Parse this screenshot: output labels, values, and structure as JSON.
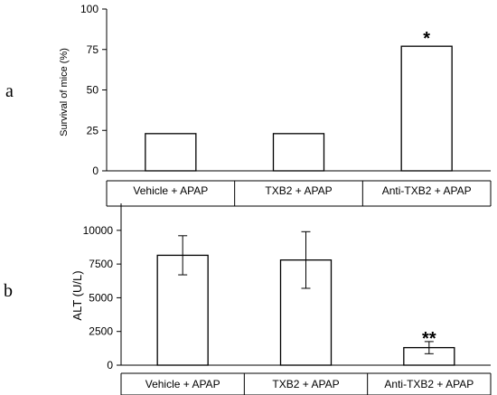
{
  "panels": [
    "a",
    "b"
  ],
  "chart_data": [
    {
      "type": "bar",
      "panel": "a",
      "title": "",
      "xlabel": "",
      "ylabel": "Survival of mice (%)",
      "categories": [
        "Vehicle + APAP",
        "TXB2 + APAP",
        "Anti-TXB2 + APAP"
      ],
      "values": [
        23,
        23,
        77
      ],
      "annotations": [
        "",
        "",
        "*"
      ],
      "ylim": [
        0,
        100
      ],
      "yticks": [
        "0",
        "25",
        "50",
        "75",
        "100"
      ],
      "grid": false,
      "bar_color": "#ffffff",
      "edge_color": "#000000"
    },
    {
      "type": "bar",
      "panel": "b",
      "title": "",
      "xlabel": "",
      "ylabel": "ALT (U/L)",
      "categories": [
        "Vehicle + APAP",
        "TXB2 + APAP",
        "Anti-TXB2 + APAP"
      ],
      "values": [
        8150,
        7800,
        1300
      ],
      "errors": [
        1450,
        2100,
        450
      ],
      "annotations": [
        "",
        "",
        "**"
      ],
      "ylim": [
        0,
        12000
      ],
      "yticks": [
        "0",
        "2500",
        "5000",
        "7500",
        "10000"
      ],
      "grid": false,
      "bar_color": "#ffffff",
      "edge_color": "#000000"
    }
  ]
}
